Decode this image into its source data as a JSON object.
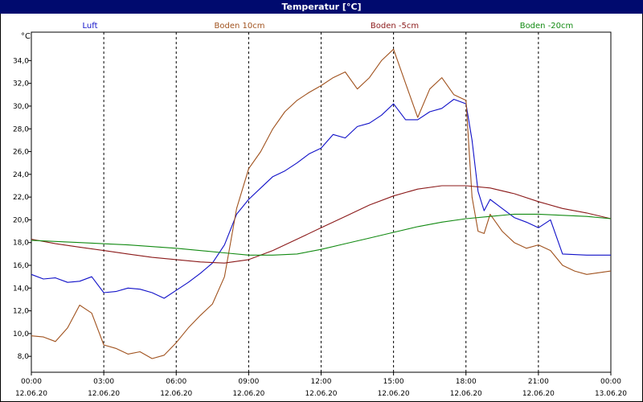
{
  "window": {
    "title": "Temperatur [°C]"
  },
  "legend": [
    {
      "name": "Luft",
      "color": "#1010c8"
    },
    {
      "name": "Boden 10cm",
      "color": "#a0521e"
    },
    {
      "name": "Boden -5cm",
      "color": "#8b1a1a"
    },
    {
      "name": "Boden -20cm",
      "color": "#128a12"
    }
  ],
  "chart_data": {
    "type": "line",
    "title": "Temperatur [°C]",
    "ylabel": "°C",
    "ylim": [
      6.6,
      36.5
    ],
    "xlim": [
      0,
      24
    ],
    "grid": true,
    "legend_placement": "top",
    "x_ticks": [
      {
        "t": 0,
        "time": "00:00",
        "date": "12.06.20"
      },
      {
        "t": 3,
        "time": "03:00",
        "date": "12.06.20"
      },
      {
        "t": 6,
        "time": "06:00",
        "date": "12.06.20"
      },
      {
        "t": 9,
        "time": "09:00",
        "date": "12.06.20"
      },
      {
        "t": 12,
        "time": "12:00",
        "date": "12.06.20"
      },
      {
        "t": 15,
        "time": "15:00",
        "date": "12.06.20"
      },
      {
        "t": 18,
        "time": "18:00",
        "date": "12.06.20"
      },
      {
        "t": 21,
        "time": "21:00",
        "date": "12.06.20"
      },
      {
        "t": 24,
        "time": "00:00",
        "date": "13.06.20"
      }
    ],
    "y_ticks": [
      "8,0",
      "10,0",
      "12,0",
      "14,0",
      "16,0",
      "18,0",
      "20,0",
      "22,0",
      "24,0",
      "26,0",
      "28,0",
      "30,0",
      "32,0",
      "34,0"
    ],
    "y_tick_values": [
      8,
      10,
      12,
      14,
      16,
      18,
      20,
      22,
      24,
      26,
      28,
      30,
      32,
      34
    ],
    "series": [
      {
        "name": "Luft",
        "color": "#1010c8",
        "x": [
          0,
          0.5,
          1,
          1.5,
          2,
          2.5,
          3,
          3.5,
          4,
          4.5,
          5,
          5.5,
          6,
          6.5,
          7,
          7.5,
          8,
          8.5,
          9,
          9.5,
          10,
          10.5,
          11,
          11.5,
          12,
          12.5,
          13,
          13.5,
          14,
          14.5,
          15,
          15.5,
          16,
          16.5,
          17,
          17.5,
          18,
          18.25,
          18.5,
          18.75,
          19,
          19.5,
          20,
          20.5,
          21,
          21.5,
          22,
          23,
          24
        ],
        "y": [
          15.2,
          14.8,
          14.9,
          14.5,
          14.6,
          15.0,
          13.6,
          13.7,
          14.0,
          13.9,
          13.6,
          13.1,
          13.8,
          14.5,
          15.3,
          16.2,
          17.8,
          20.5,
          21.8,
          22.8,
          23.8,
          24.3,
          25.0,
          25.8,
          26.3,
          27.5,
          27.2,
          28.2,
          28.5,
          29.2,
          30.2,
          28.8,
          28.8,
          29.5,
          29.8,
          30.6,
          30.2,
          27.0,
          22.5,
          20.8,
          21.8,
          21.0,
          20.2,
          19.8,
          19.3,
          20.0,
          17.0,
          16.9,
          16.9
        ]
      },
      {
        "name": "Boden 10cm",
        "color": "#a0521e",
        "x": [
          0,
          0.5,
          1,
          1.5,
          2,
          2.5,
          3,
          3.5,
          4,
          4.5,
          5,
          5.5,
          6,
          6.5,
          7,
          7.5,
          8,
          8.5,
          9,
          9.5,
          10,
          10.5,
          11,
          11.5,
          12,
          12.5,
          13,
          13.5,
          14,
          14.5,
          15,
          15.5,
          16,
          16.5,
          17,
          17.5,
          18,
          18.25,
          18.5,
          18.75,
          19,
          19.5,
          20,
          20.5,
          21,
          21.5,
          22,
          22.5,
          23,
          24
        ],
        "y": [
          9.8,
          9.7,
          9.3,
          10.5,
          12.5,
          11.8,
          9.0,
          8.7,
          8.2,
          8.4,
          7.8,
          8.1,
          9.2,
          10.5,
          11.6,
          12.6,
          15.0,
          21.0,
          24.5,
          26.0,
          28.0,
          29.5,
          30.5,
          31.2,
          31.8,
          32.5,
          33.0,
          31.5,
          32.5,
          34.0,
          35.0,
          32.0,
          29.0,
          31.5,
          32.5,
          31.0,
          30.5,
          22.0,
          19.0,
          18.8,
          20.5,
          19.0,
          18.0,
          17.5,
          17.8,
          17.3,
          16.0,
          15.5,
          15.2,
          15.5
        ]
      },
      {
        "name": "Boden -5cm",
        "color": "#8b1a1a",
        "x": [
          0,
          1,
          2,
          3,
          4,
          5,
          6,
          7,
          8,
          9,
          10,
          11,
          12,
          13,
          14,
          15,
          16,
          17,
          18,
          19,
          20,
          21,
          22,
          23,
          24
        ],
        "y": [
          18.3,
          17.9,
          17.6,
          17.3,
          17.0,
          16.7,
          16.5,
          16.3,
          16.2,
          16.5,
          17.3,
          18.3,
          19.3,
          20.3,
          21.3,
          22.1,
          22.7,
          23.0,
          23.0,
          22.8,
          22.3,
          21.6,
          21.0,
          20.6,
          20.1
        ]
      },
      {
        "name": "Boden -20cm",
        "color": "#128a12",
        "x": [
          0,
          2,
          4,
          6,
          8,
          9,
          10,
          11,
          12,
          13,
          14,
          15,
          16,
          17,
          18,
          19,
          20,
          21,
          22,
          23,
          24
        ],
        "y": [
          18.2,
          18.0,
          17.8,
          17.5,
          17.1,
          16.9,
          16.9,
          17.0,
          17.4,
          17.9,
          18.4,
          18.9,
          19.4,
          19.8,
          20.1,
          20.3,
          20.5,
          20.5,
          20.4,
          20.3,
          20.1
        ]
      }
    ]
  }
}
